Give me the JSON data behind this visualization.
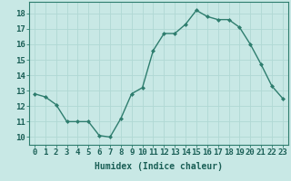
{
  "x": [
    0,
    1,
    2,
    3,
    4,
    5,
    6,
    7,
    8,
    9,
    10,
    11,
    12,
    13,
    14,
    15,
    16,
    17,
    18,
    19,
    20,
    21,
    22,
    23
  ],
  "y": [
    12.8,
    12.6,
    12.1,
    11.0,
    11.0,
    11.0,
    10.1,
    10.0,
    11.2,
    12.8,
    13.2,
    15.6,
    16.7,
    16.7,
    17.3,
    18.2,
    17.8,
    17.6,
    17.6,
    17.1,
    16.0,
    14.7,
    13.3,
    12.5
  ],
  "line_color": "#2e7d6e",
  "marker_color": "#2e7d6e",
  "bg_color": "#c8e8e5",
  "grid_color": "#b0d8d4",
  "xlabel": "Humidex (Indice chaleur)",
  "xlim": [
    -0.5,
    23.5
  ],
  "ylim": [
    9.5,
    18.75
  ],
  "yticks": [
    10,
    11,
    12,
    13,
    14,
    15,
    16,
    17,
    18
  ],
  "xtick_labels": [
    "0",
    "1",
    "2",
    "3",
    "4",
    "5",
    "6",
    "7",
    "8",
    "9",
    "10",
    "11",
    "12",
    "13",
    "14",
    "15",
    "16",
    "17",
    "18",
    "19",
    "20",
    "21",
    "22",
    "23"
  ],
  "xlabel_fontsize": 7,
  "tick_fontsize": 6.5
}
